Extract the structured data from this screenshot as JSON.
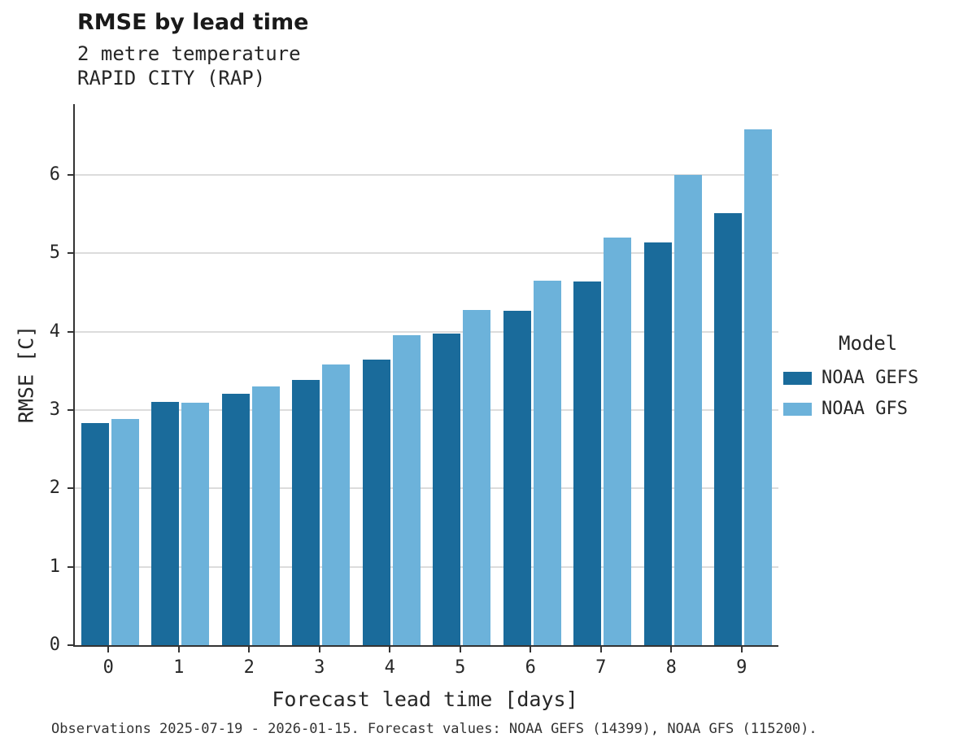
{
  "title": "RMSE by lead time",
  "subtitle1": "2 metre temperature",
  "subtitle2": "RAPID CITY (RAP)",
  "caption": "Observations 2025-07-19 - 2026-01-15. Forecast values: NOAA GEFS (14399), NOAA GFS (115200).",
  "colors": {
    "noaa_gefs": "#1a6b9b",
    "noaa_gfs": "#6cb2da",
    "gridline": "#dcdcdc",
    "axis": "#333333"
  },
  "chart_data": {
    "type": "bar",
    "title": "RMSE by lead time",
    "subtitle": "2 metre temperature",
    "station": "RAPID CITY (RAP)",
    "xlabel": "Forecast lead time [days]",
    "ylabel": "RMSE [C]",
    "categories": [
      "0",
      "1",
      "2",
      "3",
      "4",
      "5",
      "6",
      "7",
      "8",
      "9"
    ],
    "series": [
      {
        "name": "NOAA GEFS",
        "color": "#1a6b9b",
        "values": [
          2.83,
          3.1,
          3.21,
          3.38,
          3.64,
          3.97,
          4.26,
          4.64,
          5.14,
          5.51
        ]
      },
      {
        "name": "NOAA GFS",
        "color": "#6cb2da",
        "values": [
          2.88,
          3.09,
          3.3,
          3.58,
          3.95,
          4.28,
          4.65,
          5.2,
          6.0,
          6.58
        ]
      }
    ],
    "ylim": [
      0,
      6.9
    ],
    "yticks": [
      0,
      1,
      2,
      3,
      4,
      5,
      6
    ],
    "grid": true,
    "legend_title": "Model",
    "legend_position": "right"
  }
}
